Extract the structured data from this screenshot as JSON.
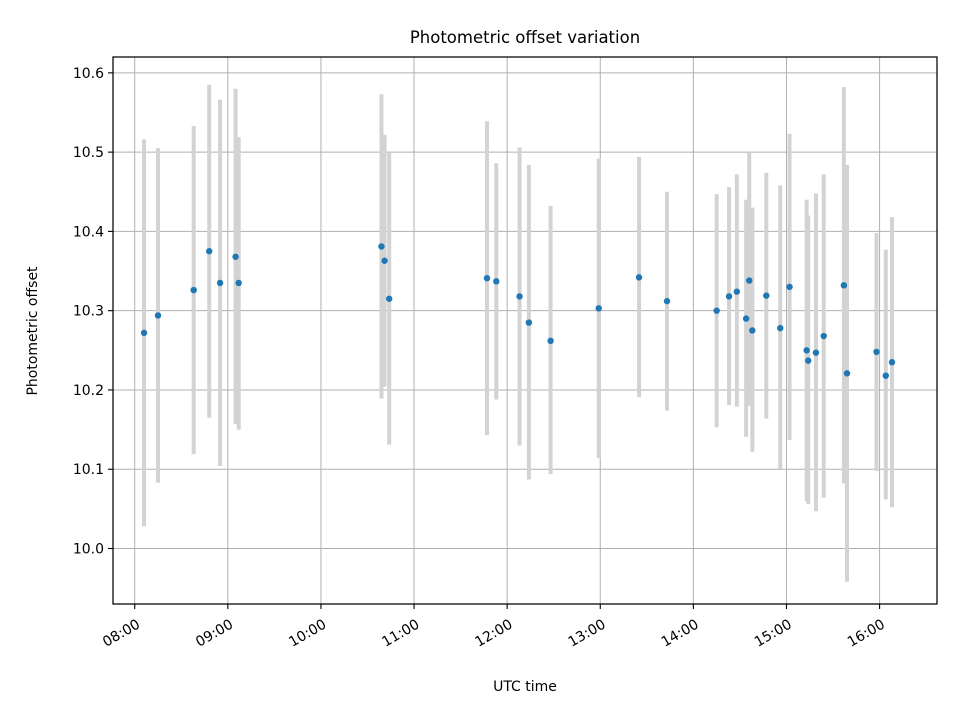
{
  "chart_data": {
    "type": "scatter",
    "title": "Photometric offset variation",
    "xlabel": "UTC time",
    "ylabel": "Photometric offset",
    "grid": true,
    "x_ticks": [
      "08:00",
      "09:00",
      "10:00",
      "11:00",
      "12:00",
      "13:00",
      "14:00",
      "15:00",
      "16:00"
    ],
    "y_ticks": [
      "10.0",
      "10.1",
      "10.2",
      "10.3",
      "10.4",
      "10.5",
      "10.6"
    ],
    "xlim": [
      "07:46",
      "16:37"
    ],
    "ylim": [
      9.93,
      10.62
    ],
    "colors": {
      "point": "#1f77b4",
      "errorbar": "#d3d3d3",
      "grid": "#b0b0b0"
    },
    "points": [
      {
        "x": "08:06",
        "y": 10.272,
        "ylow": 10.028,
        "yhigh": 10.516
      },
      {
        "x": "08:15",
        "y": 10.294,
        "ylow": 10.083,
        "yhigh": 10.505
      },
      {
        "x": "08:38",
        "y": 10.326,
        "ylow": 10.119,
        "yhigh": 10.533
      },
      {
        "x": "08:48",
        "y": 10.375,
        "ylow": 10.165,
        "yhigh": 10.585
      },
      {
        "x": "08:55",
        "y": 10.335,
        "ylow": 10.104,
        "yhigh": 10.566
      },
      {
        "x": "09:05",
        "y": 10.368,
        "ylow": 10.157,
        "yhigh": 10.58
      },
      {
        "x": "09:07",
        "y": 10.335,
        "ylow": 10.15,
        "yhigh": 10.519
      },
      {
        "x": "10:39",
        "y": 10.381,
        "ylow": 10.189,
        "yhigh": 10.573
      },
      {
        "x": "10:41",
        "y": 10.363,
        "ylow": 10.204,
        "yhigh": 10.522
      },
      {
        "x": "10:44",
        "y": 10.315,
        "ylow": 10.131,
        "yhigh": 10.499
      },
      {
        "x": "11:47",
        "y": 10.341,
        "ylow": 10.143,
        "yhigh": 10.539
      },
      {
        "x": "11:53",
        "y": 10.337,
        "ylow": 10.188,
        "yhigh": 10.486
      },
      {
        "x": "12:08",
        "y": 10.318,
        "ylow": 10.13,
        "yhigh": 10.506
      },
      {
        "x": "12:14",
        "y": 10.285,
        "ylow": 10.087,
        "yhigh": 10.484
      },
      {
        "x": "12:28",
        "y": 10.262,
        "ylow": 10.094,
        "yhigh": 10.432
      },
      {
        "x": "12:59",
        "y": 10.303,
        "ylow": 10.114,
        "yhigh": 10.492
      },
      {
        "x": "13:25",
        "y": 10.342,
        "ylow": 10.191,
        "yhigh": 10.494
      },
      {
        "x": "13:43",
        "y": 10.312,
        "ylow": 10.174,
        "yhigh": 10.45
      },
      {
        "x": "14:15",
        "y": 10.3,
        "ylow": 10.153,
        "yhigh": 10.447
      },
      {
        "x": "14:23",
        "y": 10.318,
        "ylow": 10.181,
        "yhigh": 10.456
      },
      {
        "x": "14:28",
        "y": 10.324,
        "ylow": 10.179,
        "yhigh": 10.472
      },
      {
        "x": "14:34",
        "y": 10.29,
        "ylow": 10.141,
        "yhigh": 10.44
      },
      {
        "x": "14:36",
        "y": 10.338,
        "ylow": 10.18,
        "yhigh": 10.5
      },
      {
        "x": "14:38",
        "y": 10.275,
        "ylow": 10.122,
        "yhigh": 10.43
      },
      {
        "x": "14:47",
        "y": 10.319,
        "ylow": 10.164,
        "yhigh": 10.474
      },
      {
        "x": "14:56",
        "y": 10.278,
        "ylow": 10.101,
        "yhigh": 10.458
      },
      {
        "x": "15:02",
        "y": 10.33,
        "ylow": 10.137,
        "yhigh": 10.523
      },
      {
        "x": "15:13",
        "y": 10.25,
        "ylow": 10.06,
        "yhigh": 10.44
      },
      {
        "x": "15:14",
        "y": 10.237,
        "ylow": 10.056,
        "yhigh": 10.42
      },
      {
        "x": "15:19",
        "y": 10.247,
        "ylow": 10.047,
        "yhigh": 10.448
      },
      {
        "x": "15:24",
        "y": 10.268,
        "ylow": 10.064,
        "yhigh": 10.472
      },
      {
        "x": "15:37",
        "y": 10.332,
        "ylow": 10.082,
        "yhigh": 10.582
      },
      {
        "x": "15:39",
        "y": 10.221,
        "ylow": 9.958,
        "yhigh": 10.484
      },
      {
        "x": "15:58",
        "y": 10.248,
        "ylow": 10.098,
        "yhigh": 10.398
      },
      {
        "x": "16:04",
        "y": 10.218,
        "ylow": 10.062,
        "yhigh": 10.377
      },
      {
        "x": "16:08",
        "y": 10.235,
        "ylow": 10.052,
        "yhigh": 10.418
      }
    ]
  }
}
